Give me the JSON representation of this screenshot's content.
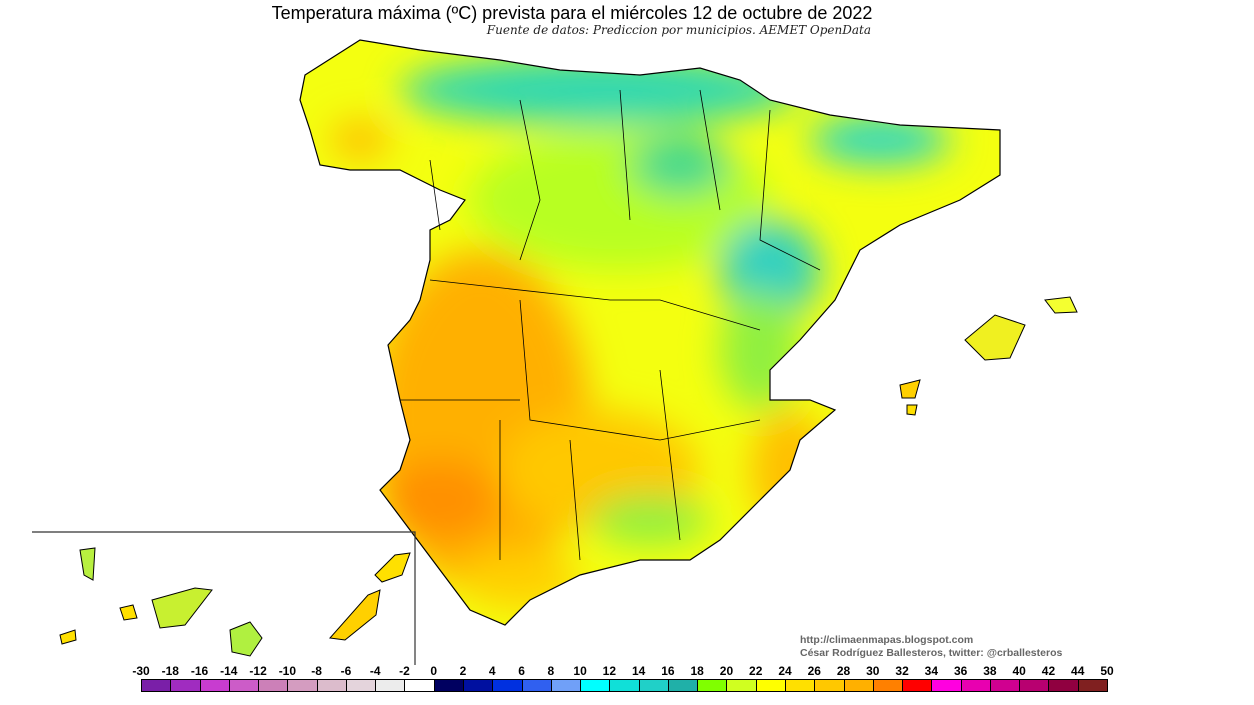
{
  "title": "Temperatura máxima (ºC) prevista para el miércoles 12 de octubre de 2022",
  "subtitle": "Fuente de datos: Prediccion por municipios. AEMET OpenData",
  "credits": {
    "url": "http://climaenmapas.blogspot.com",
    "author": "César Rodríguez Ballesteros, twitter: @crballesteros"
  },
  "legend": {
    "labels": [
      "-30",
      "-18",
      "-16",
      "-14",
      "-12",
      "-10",
      "-8",
      "-6",
      "-4",
      "-2",
      "0",
      "2",
      "4",
      "6",
      "8",
      "10",
      "12",
      "14",
      "16",
      "18",
      "20",
      "22",
      "24",
      "26",
      "28",
      "30",
      "32",
      "34",
      "36",
      "38",
      "40",
      "42",
      "44",
      "50"
    ],
    "colors": [
      "#7a1fa8",
      "#a02cc0",
      "#c83cd0",
      "#cc5cc8",
      "#cc80b8",
      "#d49cc0",
      "#dcbccc",
      "#e4d4dc",
      "#ececec",
      "#ffffff",
      "#000060",
      "#0010a0",
      "#0030e0",
      "#3060f0",
      "#70a0f8",
      "#00ffff",
      "#10e0d8",
      "#20d0c8",
      "#20b0a8",
      "#80ff00",
      "#d0ff20",
      "#ffff00",
      "#ffe000",
      "#ffc800",
      "#ffb000",
      "#ff8000",
      "#ff0000",
      "#ff00e0",
      "#e800b0",
      "#d00090",
      "#b80070",
      "#900040",
      "#802020"
    ]
  },
  "map": {
    "region": "España",
    "dominant_colors": {
      "north": "#20d0c8",
      "center": "#ffff00",
      "southwest": "#ffb000"
    }
  }
}
